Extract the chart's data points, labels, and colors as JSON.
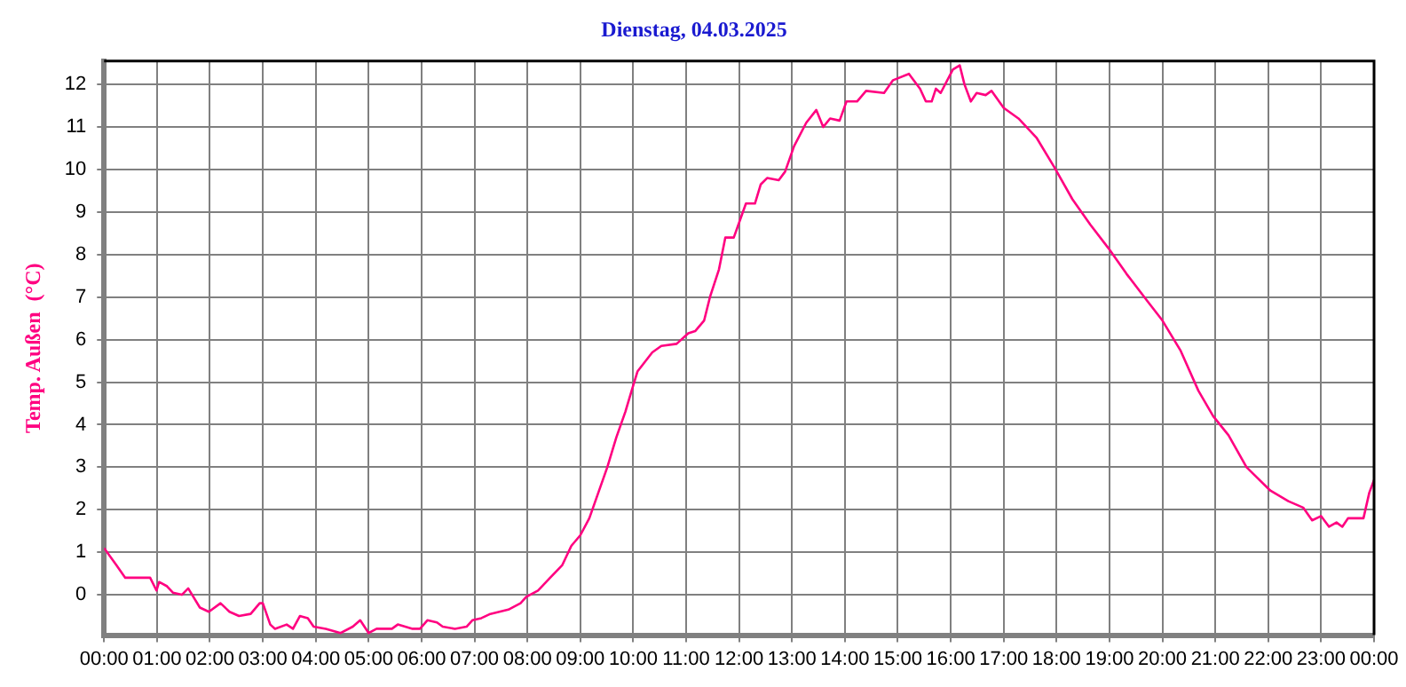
{
  "chart_data": {
    "type": "line",
    "title": "Dienstag, 04.03.2025",
    "ylabel": "Temp. Außen  (°C)",
    "x": [
      0,
      0.23,
      0.4,
      0.87,
      0.99,
      1.04,
      1.19,
      1.3,
      1.47,
      1.59,
      1.81,
      1.98,
      2.2,
      2.37,
      2.55,
      2.77,
      2.94,
      3.0,
      3.14,
      3.23,
      3.45,
      3.57,
      3.7,
      3.85,
      3.96,
      4.19,
      4.47,
      4.7,
      4.84,
      5.0,
      5.15,
      5.44,
      5.55,
      5.83,
      5.97,
      6.11,
      6.29,
      6.4,
      6.63,
      6.85,
      6.96,
      7.13,
      7.3,
      7.64,
      7.87,
      7.98,
      8.2,
      8.43,
      8.66,
      8.83,
      9.0,
      9.17,
      9.34,
      9.51,
      9.68,
      9.85,
      9.97,
      10.08,
      10.36,
      10.53,
      10.82,
      11.04,
      11.17,
      11.34,
      11.45,
      11.62,
      11.74,
      11.9,
      12.13,
      12.3,
      12.41,
      12.53,
      12.75,
      12.87,
      13.04,
      13.27,
      13.46,
      13.59,
      13.72,
      13.9,
      14.03,
      14.23,
      14.4,
      14.74,
      14.91,
      15.21,
      15.42,
      15.53,
      15.64,
      15.72,
      15.81,
      16.04,
      16.17,
      16.26,
      16.38,
      16.49,
      16.66,
      16.77,
      17.0,
      17.28,
      17.62,
      17.96,
      18.3,
      18.64,
      18.98,
      19.32,
      19.72,
      20.0,
      20.34,
      20.68,
      20.96,
      21.25,
      21.59,
      22.04,
      22.38,
      22.66,
      22.83,
      23.0,
      23.15,
      23.29,
      23.4,
      23.51,
      23.8,
      23.91,
      24.0
    ],
    "series": [
      {
        "color": "#ff0080",
        "values": [
          1.1,
          0.7,
          0.4,
          0.4,
          0.1,
          0.3,
          0.2,
          0.05,
          0,
          0.15,
          -0.3,
          -0.4,
          -0.2,
          -0.4,
          -0.5,
          -0.45,
          -0.2,
          -0.2,
          -0.7,
          -0.8,
          -0.7,
          -0.8,
          -0.5,
          -0.55,
          -0.75,
          -0.8,
          -0.9,
          -0.75,
          -0.6,
          -0.9,
          -0.8,
          -0.8,
          -0.7,
          -0.8,
          -0.8,
          -0.6,
          -0.65,
          -0.75,
          -0.8,
          -0.75,
          -0.6,
          -0.55,
          -0.45,
          -0.35,
          -0.2,
          -0.05,
          0.1,
          0.4,
          0.7,
          1.15,
          1.4,
          1.8,
          2.4,
          3.0,
          3.7,
          4.3,
          4.8,
          5.25,
          5.7,
          5.85,
          5.9,
          6.15,
          6.2,
          6.45,
          7.0,
          7.65,
          8.4,
          8.4,
          9.2,
          9.2,
          9.65,
          9.8,
          9.75,
          9.95,
          10.55,
          11.1,
          11.4,
          11.0,
          11.2,
          11.15,
          11.6,
          11.6,
          11.85,
          11.8,
          12.1,
          12.25,
          11.9,
          11.6,
          11.6,
          11.9,
          11.8,
          12.35,
          12.45,
          12.0,
          11.6,
          11.8,
          11.75,
          11.85,
          11.45,
          11.2,
          10.75,
          10.05,
          9.3,
          8.7,
          8.15,
          7.55,
          6.9,
          6.45,
          5.75,
          4.8,
          4.2,
          3.75,
          3.0,
          2.45,
          2.2,
          2.05,
          1.75,
          1.85,
          1.6,
          1.7,
          1.6,
          1.8,
          1.8,
          2.4,
          2.7
        ]
      }
    ],
    "xlim": [
      0,
      24
    ],
    "xticks": [
      {
        "value": 0,
        "label": "00:00"
      },
      {
        "value": 1,
        "label": "01:00"
      },
      {
        "value": 2,
        "label": "02:00"
      },
      {
        "value": 3,
        "label": "03:00"
      },
      {
        "value": 4,
        "label": "04:00"
      },
      {
        "value": 5,
        "label": "05:00"
      },
      {
        "value": 6,
        "label": "06:00"
      },
      {
        "value": 7,
        "label": "07:00"
      },
      {
        "value": 8,
        "label": "08:00"
      },
      {
        "value": 9,
        "label": "09:00"
      },
      {
        "value": 10,
        "label": "10:00"
      },
      {
        "value": 11,
        "label": "11:00"
      },
      {
        "value": 12,
        "label": "12:00"
      },
      {
        "value": 13,
        "label": "13:00"
      },
      {
        "value": 14,
        "label": "14:00"
      },
      {
        "value": 15,
        "label": "15:00"
      },
      {
        "value": 16,
        "label": "16:00"
      },
      {
        "value": 17,
        "label": "17:00"
      },
      {
        "value": 18,
        "label": "18:00"
      },
      {
        "value": 19,
        "label": "19:00"
      },
      {
        "value": 20,
        "label": "20:00"
      },
      {
        "value": 21,
        "label": "21:00"
      },
      {
        "value": 22,
        "label": "22:00"
      },
      {
        "value": 23,
        "label": "23:00"
      },
      {
        "value": 24,
        "label": "00:00"
      }
    ],
    "ylim": [
      -0.95,
      12.55
    ],
    "yticks": [
      0,
      1,
      2,
      3,
      4,
      5,
      6,
      7,
      8,
      9,
      10,
      11,
      12
    ],
    "grid": true,
    "legend": false,
    "marker": "none",
    "line_style": "solid"
  }
}
